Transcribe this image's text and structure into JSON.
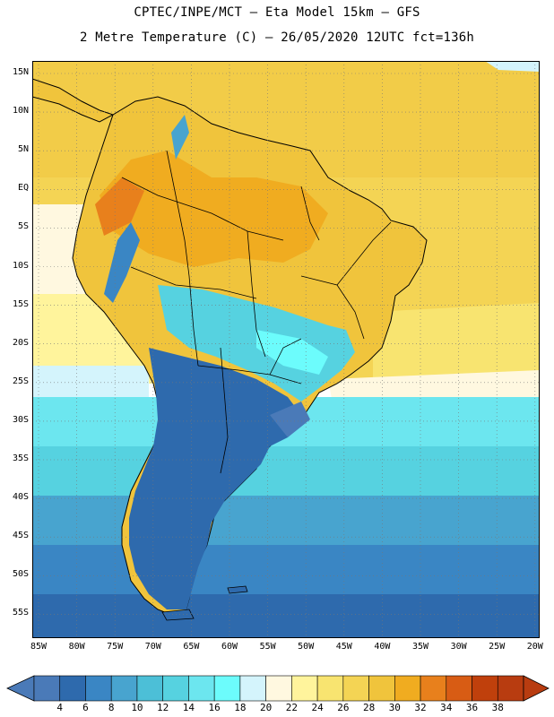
{
  "header": {
    "line1": "CPTEC/INPE/MCT –  Eta Model 15km – GFS",
    "line2": "2 Metre Temperature (C) – 26/05/2020 12UTC fct=136h"
  },
  "map": {
    "region": "South America",
    "lat_labels": [
      "15N",
      "10N",
      "5N",
      "EQ",
      "5S",
      "10S",
      "15S",
      "20S",
      "25S",
      "30S",
      "35S",
      "40S",
      "45S",
      "50S",
      "55S"
    ],
    "lon_labels": [
      "85W",
      "80W",
      "75W",
      "70W",
      "65W",
      "60W",
      "55W",
      "50W",
      "45W",
      "40W",
      "35W",
      "30W",
      "25W",
      "20W"
    ]
  },
  "colorbar": {
    "ticks": [
      "4",
      "6",
      "8",
      "10",
      "12",
      "14",
      "16",
      "18",
      "20",
      "22",
      "24",
      "26",
      "28",
      "30",
      "32",
      "34",
      "36",
      "38"
    ],
    "colors": [
      "#4a7ab8",
      "#2e6aad",
      "#3a86c4",
      "#48a4cf",
      "#4cbfd7",
      "#56d2e0",
      "#6ce6ef",
      "#6cfcfc",
      "#d4f4fc",
      "#fff8e0",
      "#fff49c",
      "#f8e470",
      "#f4d454",
      "#f0c43c",
      "#f0ac20",
      "#e8801c",
      "#d85c14",
      "#c0400c",
      "#b83c10"
    ]
  }
}
